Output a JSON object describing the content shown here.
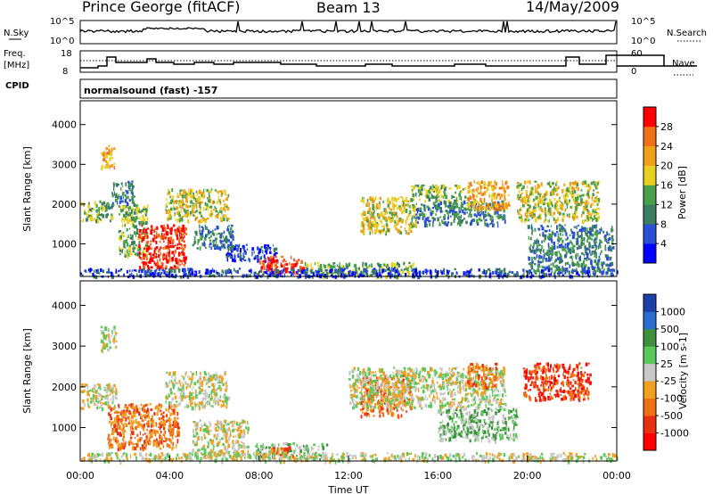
{
  "header": {
    "radar": "Prince George (fitACF)",
    "beam": "Beam 13",
    "date": "14/May/2009"
  },
  "aux": {
    "nsky_label": "N.Sky",
    "nsky_ticks": [
      "10^5",
      "10^0"
    ],
    "nsearch_label": "N.Search",
    "nsearch_ticks": [
      "10^5",
      "10^0"
    ],
    "freq_label_1": "Freq.",
    "freq_label_2": "[MHz]",
    "freq_ticks": [
      "18",
      "8"
    ],
    "nave_label": "Nave",
    "nave_ticks": [
      "60",
      "0"
    ],
    "cpid_label": "CPID",
    "cpid_text": "normalsound (fast) -157"
  },
  "chart_data": [
    {
      "type": "heatmap",
      "name": "power",
      "ylabel": "Slant Range [km]",
      "xlabel": "",
      "x_ticks": [
        "00:00",
        "04:00",
        "08:00",
        "12:00",
        "16:00",
        "20:00",
        "00:00"
      ],
      "x_range_hours": [
        0,
        24
      ],
      "y_ticks": [
        1000,
        2000,
        3000,
        4000
      ],
      "ylim": [
        180,
        4600
      ],
      "colorbar": {
        "label": "Power [dB]",
        "ticks": [
          "4",
          "8",
          "12",
          "16",
          "20",
          "24",
          "28"
        ],
        "colors": [
          "#0000ff",
          "#2a4fd6",
          "#3b7d5e",
          "#4aa04a",
          "#e8d020",
          "#f0a018",
          "#f07018",
          "#ff0000"
        ]
      },
      "regions": [
        {
          "t": [
            0.0,
            1.4
          ],
          "r": [
            1600,
            2100
          ],
          "level": 3
        },
        {
          "t": [
            0.9,
            1.5
          ],
          "r": [
            2900,
            3500
          ],
          "level": 5
        },
        {
          "t": [
            1.4,
            2.4
          ],
          "r": [
            2000,
            2600
          ],
          "level": 2
        },
        {
          "t": [
            1.7,
            3.0
          ],
          "r": [
            700,
            2000
          ],
          "level": 3
        },
        {
          "t": [
            2.6,
            4.7
          ],
          "r": [
            400,
            1500
          ],
          "level": 7
        },
        {
          "t": [
            3.8,
            6.6
          ],
          "r": [
            1600,
            2400
          ],
          "level": 4
        },
        {
          "t": [
            5.0,
            6.8
          ],
          "r": [
            900,
            1500
          ],
          "level": 2
        },
        {
          "t": [
            6.5,
            8.8
          ],
          "r": [
            600,
            1000
          ],
          "level": 1
        },
        {
          "t": [
            8.0,
            10.0
          ],
          "r": [
            300,
            700
          ],
          "level": 7
        },
        {
          "t": [
            10.0,
            15.0
          ],
          "r": [
            200,
            550
          ],
          "level": 3
        },
        {
          "t": [
            12.5,
            15.0
          ],
          "r": [
            1300,
            2200
          ],
          "level": 4
        },
        {
          "t": [
            14.8,
            17.2
          ],
          "r": [
            2100,
            2500
          ],
          "level": 3
        },
        {
          "t": [
            15.0,
            19.0
          ],
          "r": [
            1500,
            2100
          ],
          "level": 2
        },
        {
          "t": [
            17.3,
            19.2
          ],
          "r": [
            1900,
            2600
          ],
          "level": 5
        },
        {
          "t": [
            19.5,
            23.2
          ],
          "r": [
            1600,
            2600
          ],
          "level": 4
        },
        {
          "t": [
            20.0,
            23.8
          ],
          "r": [
            300,
            1500
          ],
          "level": 2
        },
        {
          "t": [
            0.0,
            24.0
          ],
          "r": [
            200,
            400
          ],
          "level": 1
        }
      ]
    },
    {
      "type": "heatmap",
      "name": "velocity",
      "ylabel": "Slant Range [km]",
      "xlabel": "Time UT",
      "x_ticks": [
        "00:00",
        "04:00",
        "08:00",
        "12:00",
        "16:00",
        "20:00",
        "00:00"
      ],
      "x_range_hours": [
        0,
        24
      ],
      "y_ticks": [
        1000,
        2000,
        3000,
        4000
      ],
      "ylim": [
        180,
        4600
      ],
      "colorbar": {
        "label": "Velocity [m s-1]",
        "ticks": [
          "1000",
          "500",
          "100",
          "25",
          "-25",
          "-100",
          "-500",
          "-1000"
        ],
        "colors": [
          "#1c3faa",
          "#2a6fd0",
          "#3f8f3f",
          "#5cc85c",
          "#c8c8c8",
          "#f0a020",
          "#f07010",
          "#e83010",
          "#ff0000"
        ]
      },
      "regions": [
        {
          "t": [
            0.0,
            1.6
          ],
          "r": [
            1500,
            2100
          ],
          "level": 4
        },
        {
          "t": [
            0.9,
            1.6
          ],
          "r": [
            2900,
            3500
          ],
          "level": 4
        },
        {
          "t": [
            1.2,
            4.4
          ],
          "r": [
            500,
            1600
          ],
          "level": 6
        },
        {
          "t": [
            3.8,
            6.6
          ],
          "r": [
            1500,
            2400
          ],
          "level": 4
        },
        {
          "t": [
            5.0,
            7.5
          ],
          "r": [
            300,
            1200
          ],
          "level": 4
        },
        {
          "t": [
            7.8,
            11.0
          ],
          "r": [
            250,
            650
          ],
          "level": 3
        },
        {
          "t": [
            8.5,
            9.5
          ],
          "r": [
            300,
            550
          ],
          "level": 6
        },
        {
          "t": [
            12.5,
            14.8
          ],
          "r": [
            1300,
            2300
          ],
          "level": 6
        },
        {
          "t": [
            12.0,
            19.0
          ],
          "r": [
            1500,
            2500
          ],
          "level": 4
        },
        {
          "t": [
            17.3,
            18.6
          ],
          "r": [
            2000,
            2600
          ],
          "level": 6
        },
        {
          "t": [
            19.8,
            22.8
          ],
          "r": [
            1700,
            2600
          ],
          "level": 7
        },
        {
          "t": [
            16.0,
            19.5
          ],
          "r": [
            700,
            1500
          ],
          "level": 3
        },
        {
          "t": [
            0.0,
            24.0
          ],
          "r": [
            200,
            400
          ],
          "level": 4
        }
      ]
    }
  ]
}
